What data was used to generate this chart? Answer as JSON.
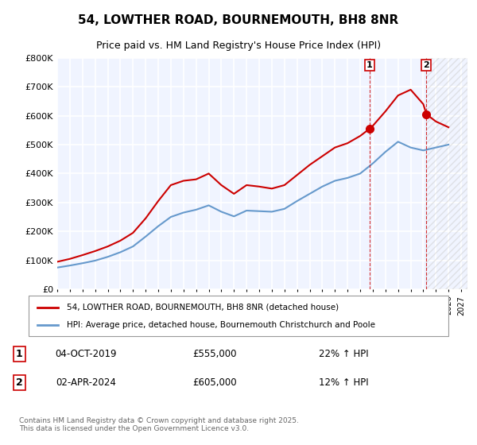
{
  "title": "54, LOWTHER ROAD, BOURNEMOUTH, BH8 8NR",
  "subtitle": "Price paid vs. HM Land Registry's House Price Index (HPI)",
  "ylabel": "",
  "ylim": [
    0,
    800000
  ],
  "yticks": [
    0,
    100000,
    200000,
    300000,
    400000,
    500000,
    600000,
    700000,
    800000
  ],
  "ytick_labels": [
    "£0",
    "£100K",
    "£200K",
    "£300K",
    "£400K",
    "£500K",
    "£600K",
    "£700K",
    "£800K"
  ],
  "xlim_start": 1995.0,
  "xlim_end": 2027.5,
  "vline1_x": 2019.75,
  "vline2_x": 2024.25,
  "point1_x": 2019.75,
  "point1_y": 555000,
  "point2_x": 2024.25,
  "point2_y": 605000,
  "sale1_label": "1",
  "sale2_label": "2",
  "sale1_date": "04-OCT-2019",
  "sale1_price": "£555,000",
  "sale1_hpi": "22% ↑ HPI",
  "sale2_date": "02-APR-2024",
  "sale2_price": "£605,000",
  "sale2_hpi": "12% ↑ HPI",
  "legend1_label": "54, LOWTHER ROAD, BOURNEMOUTH, BH8 8NR (detached house)",
  "legend2_label": "HPI: Average price, detached house, Bournemouth Christchurch and Poole",
  "footer": "Contains HM Land Registry data © Crown copyright and database right 2025.\nThis data is licensed under the Open Government Licence v3.0.",
  "line_color_red": "#cc0000",
  "line_color_blue": "#6699cc",
  "bg_color": "#f0f4ff",
  "grid_color": "#ffffff",
  "hpi_years": [
    1995,
    1996,
    1997,
    1998,
    1999,
    2000,
    2001,
    2002,
    2003,
    2004,
    2005,
    2006,
    2007,
    2008,
    2009,
    2010,
    2011,
    2012,
    2013,
    2014,
    2015,
    2016,
    2017,
    2018,
    2019,
    2020,
    2021,
    2022,
    2023,
    2024,
    2025,
    2026
  ],
  "hpi_values": [
    75000,
    82000,
    90000,
    99000,
    112000,
    128000,
    148000,
    182000,
    218000,
    250000,
    265000,
    275000,
    290000,
    268000,
    252000,
    272000,
    270000,
    268000,
    278000,
    305000,
    330000,
    355000,
    375000,
    385000,
    400000,
    435000,
    475000,
    510000,
    490000,
    480000,
    490000,
    500000
  ],
  "price_years": [
    1995,
    1996,
    1997,
    1998,
    1999,
    2000,
    2001,
    2002,
    2003,
    2004,
    2005,
    2006,
    2007,
    2008,
    2009,
    2010,
    2011,
    2012,
    2013,
    2014,
    2015,
    2016,
    2017,
    2018,
    2019,
    2019.75,
    2020,
    2021,
    2022,
    2023,
    2024,
    2024.25,
    2025,
    2026
  ],
  "price_values": [
    95000,
    105000,
    118000,
    132000,
    148000,
    168000,
    195000,
    245000,
    305000,
    360000,
    375000,
    380000,
    400000,
    360000,
    330000,
    360000,
    355000,
    348000,
    360000,
    395000,
    430000,
    460000,
    490000,
    505000,
    530000,
    555000,
    565000,
    615000,
    670000,
    690000,
    640000,
    605000,
    580000,
    560000
  ]
}
